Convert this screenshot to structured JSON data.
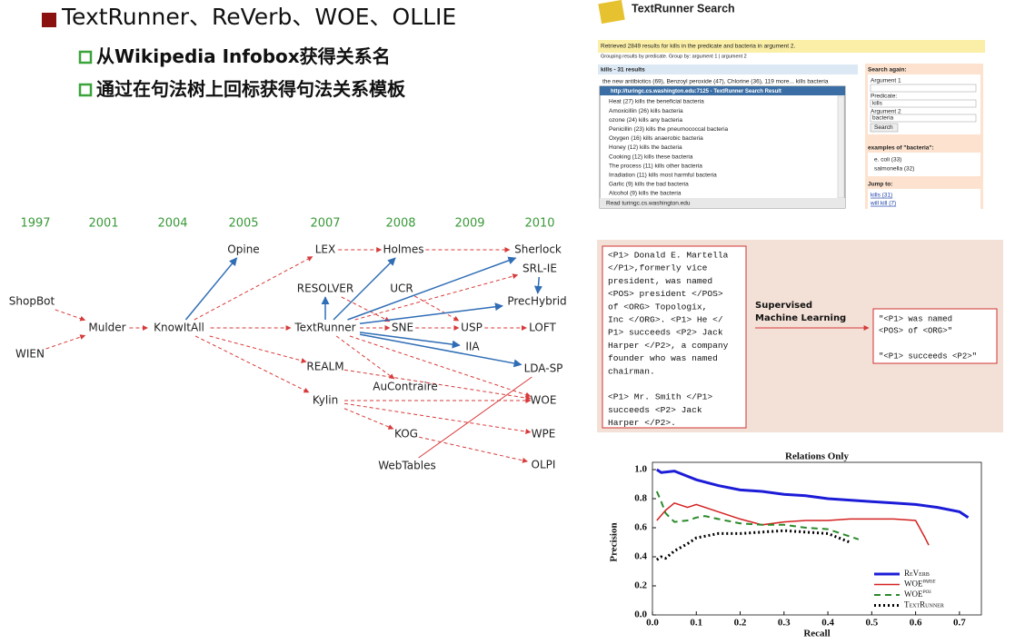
{
  "slide": {
    "title": "TextRunner、ReVerb、WOE、OLLIE",
    "bullets": [
      "从Wikipedia Infobox获得关系名",
      "通过在句法树上回标获得句法关系模板"
    ]
  },
  "timeline": {
    "years": [
      "1997",
      "2001",
      "2004",
      "2005",
      "2007",
      "2008",
      "2009",
      "2010"
    ],
    "nodes": [
      "ShopBot",
      "WIEN",
      "Mulder",
      "KnowItAll",
      "Opine",
      "LEX",
      "RESOLVER",
      "TextRunner",
      "REALM",
      "Kylin",
      "Holmes",
      "UCR",
      "SNE",
      "AuContraire",
      "KOG",
      "WebTables",
      "USP",
      "IIA",
      "Sherlock",
      "SRL-IE",
      "PrecHybrid",
      "LOFT",
      "LDA-SP",
      "WOE",
      "WPE",
      "OLPI"
    ]
  },
  "search_screenshot": {
    "header": "TextRunner Search",
    "summary": "Retrieved 2849 results for kills in the predicate and bacteria in argument 2.",
    "grouping": "Grouping results by predicate. Group by: argument 1 | argument 2",
    "result_header": "kills - 31 results",
    "result_line": "the new antibiotics (69), Benzoyl peroxide (47), Chlorine (36), 119 more... kills bacteria",
    "popup_title": "http://turingc.cs.washington.edu:7125 - TextRunner Search Result",
    "popup_lines": [
      "Heat (27) kills the beneficial bacteria",
      "Amoxicillin (26) kills bacteria",
      "ozone (24) kills any bacteria",
      "Penicillin (23) kills the pneumococcal bacteria",
      "Oxygen (16) kills anaerobic bacteria",
      "Honey (12) kills the bacteria",
      "Cooking (12) kills these bacteria",
      "The process (11) kills other bacteria",
      "Irradiation (11) kills most harmful bacteria",
      "Garlic (9) kills the bad bacteria",
      "Alcohol (9) kills the bacteria"
    ],
    "status": "Read turingc.cs.washington.edu",
    "sidebar": {
      "search_again": "Search again:",
      "argument1": "Argument 1",
      "predicate": "Predicate:",
      "predicate_value": "kills",
      "argument2": "Argument 2",
      "argument2_value": "bacteria",
      "button": "Search",
      "examples_header": "examples of \"bacteria\":",
      "examples": [
        "e. coli (33)",
        "salmonella (32)"
      ],
      "jump_header": "Jump to:",
      "jump_links": [
        "kills (31)",
        "will kill (7)"
      ]
    }
  },
  "supervised_example": {
    "input_paragraphs": [
      [
        "<P1> Donald E. Martella",
        "</P1>,formerly vice",
        "president, was named",
        "<POS> president </POS>",
        "of <ORG> Topologix,",
        "Inc </ORG>. <P1> He </",
        "P1> succeeds <P2> Jack",
        "Harper </P2>, a company",
        "founder who was named",
        "chairman."
      ],
      [
        "<P1> Mr. Smith </P1>",
        "succeeds <P2> Jack",
        "Harper </P2>."
      ]
    ],
    "method": [
      "Supervised",
      "Machine Learning"
    ],
    "output_lines": [
      "\"<P1> was named",
      "<POS> of <ORG>\"",
      "\"<P1> succeeds <P2>\""
    ]
  },
  "chart_data": {
    "type": "line",
    "title": "Relations Only",
    "x_label": "Recall",
    "y_label": "Precision",
    "xlim": [
      0,
      0.75
    ],
    "ylim": [
      0,
      1.05
    ],
    "xticks": [
      {
        "value": 0,
        "label": "0.0"
      },
      0.1,
      0.2,
      0.3,
      0.4,
      0.5,
      0.6,
      0.7
    ],
    "yticks": [
      {
        "value": 0,
        "label": "0.0"
      },
      0.2,
      0.4,
      0.6,
      0.8,
      {
        "value": 1,
        "label": "1.0"
      }
    ],
    "series": [
      {
        "name": "ReVerb",
        "color": "#1c1cd8",
        "x": [
          0.01,
          0.02,
          0.05,
          0.1,
          0.15,
          0.2,
          0.25,
          0.3,
          0.35,
          0.4,
          0.45,
          0.5,
          0.55,
          0.6,
          0.65,
          0.7,
          0.72
        ],
        "values": [
          1.0,
          0.98,
          0.99,
          0.93,
          0.89,
          0.86,
          0.85,
          0.83,
          0.82,
          0.8,
          0.79,
          0.78,
          0.77,
          0.76,
          0.74,
          0.71,
          0.67
        ]
      },
      {
        "name": "WOE",
        "superscript": "parse",
        "color": "#d42020",
        "x": [
          0.01,
          0.03,
          0.05,
          0.08,
          0.1,
          0.15,
          0.2,
          0.25,
          0.3,
          0.35,
          0.4,
          0.45,
          0.5,
          0.55,
          0.6,
          0.62,
          0.63
        ],
        "values": [
          0.65,
          0.72,
          0.77,
          0.74,
          0.76,
          0.71,
          0.66,
          0.62,
          0.64,
          0.65,
          0.65,
          0.66,
          0.66,
          0.66,
          0.65,
          0.54,
          0.48
        ]
      },
      {
        "name": "WOE",
        "superscript": "pos",
        "color": "#2a8a2a",
        "x": [
          0.01,
          0.02,
          0.03,
          0.05,
          0.08,
          0.1,
          0.12,
          0.15,
          0.2,
          0.25,
          0.3,
          0.35,
          0.4,
          0.45,
          0.47
        ],
        "values": [
          0.85,
          0.78,
          0.7,
          0.64,
          0.65,
          0.67,
          0.68,
          0.66,
          0.63,
          0.62,
          0.62,
          0.6,
          0.59,
          0.54,
          0.52
        ]
      },
      {
        "name": "TextRunner",
        "color": "#000000",
        "x": [
          0.01,
          0.02,
          0.03,
          0.05,
          0.08,
          0.1,
          0.15,
          0.2,
          0.25,
          0.3,
          0.35,
          0.4,
          0.45
        ],
        "values": [
          0.38,
          0.4,
          0.39,
          0.44,
          0.49,
          0.53,
          0.56,
          0.56,
          0.57,
          0.58,
          0.57,
          0.56,
          0.5
        ]
      }
    ]
  }
}
